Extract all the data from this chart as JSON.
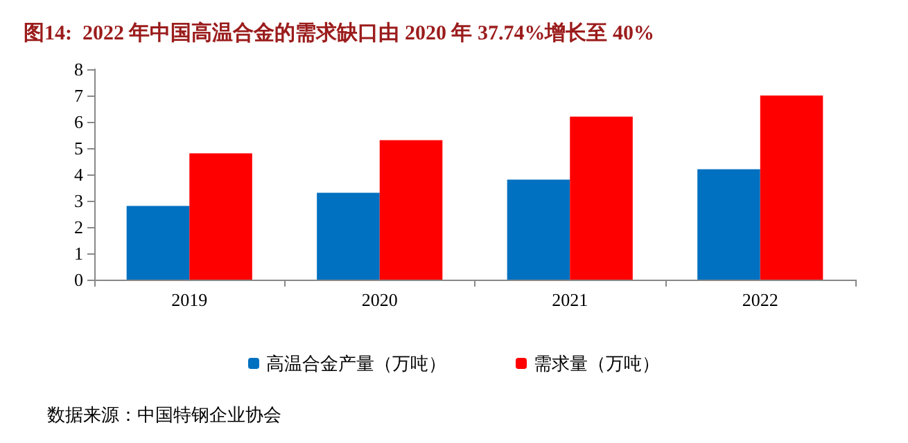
{
  "chart_data": {
    "type": "bar",
    "title": "图14:  2022 年中国高温合金的需求缺口由 2020 年 37.74%增长至 40%",
    "categories": [
      "2019",
      "2020",
      "2021",
      "2022"
    ],
    "series": [
      {
        "name": "高温合金产量（万吨）",
        "color": "#0070c0",
        "values": [
          2.8,
          3.3,
          3.8,
          4.2
        ]
      },
      {
        "name": "需求量（万吨）",
        "color": "#ff0000",
        "values": [
          4.8,
          5.3,
          6.2,
          7.0
        ]
      }
    ],
    "ylim": [
      0,
      8
    ],
    "yticks": [
      0,
      1,
      2,
      3,
      4,
      5,
      6,
      7,
      8
    ],
    "grid": false,
    "legend": "bottom",
    "annotations": [
      "数据来源：中国特钢企业协会"
    ]
  }
}
